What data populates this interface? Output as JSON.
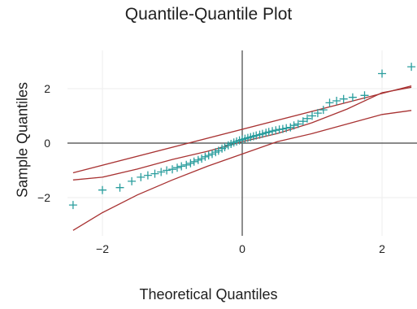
{
  "chart_data": {
    "type": "scatter",
    "title": "Quantile-Quantile Plot",
    "xlabel": "Theoretical Quantiles",
    "ylabel": "Sample Quantiles",
    "xlim": [
      -2.5,
      2.5
    ],
    "ylim": [
      -3.4,
      3.4
    ],
    "x_ticks": [
      -2,
      0,
      2
    ],
    "x_tick_labels": [
      "−2",
      "0",
      "2"
    ],
    "y_ticks": [
      -2,
      0,
      2
    ],
    "y_tick_labels": [
      "−2",
      "0",
      "2"
    ],
    "grid": true,
    "colors": {
      "points": "#2a9d9d",
      "bands": "#a83232",
      "axes": "#444444",
      "grid": "#eeeeee"
    },
    "series": [
      {
        "type": "scatter",
        "marker": "plus",
        "x": [
          -2.42,
          -2.0,
          -1.75,
          -1.58,
          -1.45,
          -1.35,
          -1.25,
          -1.16,
          -1.08,
          -1.0,
          -0.93,
          -0.87,
          -0.8,
          -0.74,
          -0.69,
          -0.63,
          -0.58,
          -0.53,
          -0.48,
          -0.43,
          -0.38,
          -0.34,
          -0.29,
          -0.25,
          -0.2,
          -0.16,
          -0.12,
          -0.08,
          -0.04,
          0.0,
          0.04,
          0.08,
          0.12,
          0.16,
          0.2,
          0.25,
          0.29,
          0.34,
          0.38,
          0.43,
          0.48,
          0.53,
          0.58,
          0.63,
          0.69,
          0.74,
          0.8,
          0.87,
          0.93,
          1.0,
          1.08,
          1.16,
          1.25,
          1.35,
          1.45,
          1.58,
          1.75,
          2.0,
          2.42
        ],
        "y": [
          -2.27,
          -1.72,
          -1.63,
          -1.4,
          -1.25,
          -1.18,
          -1.12,
          -1.06,
          -1.0,
          -0.96,
          -0.9,
          -0.85,
          -0.8,
          -0.74,
          -0.68,
          -0.62,
          -0.57,
          -0.5,
          -0.45,
          -0.4,
          -0.33,
          -0.28,
          -0.2,
          -0.15,
          -0.08,
          -0.03,
          0.02,
          0.06,
          0.1,
          0.13,
          0.16,
          0.19,
          0.22,
          0.25,
          0.28,
          0.31,
          0.34,
          0.38,
          0.41,
          0.44,
          0.47,
          0.5,
          0.52,
          0.55,
          0.58,
          0.65,
          0.7,
          0.8,
          0.9,
          1.0,
          1.1,
          1.22,
          1.48,
          1.55,
          1.62,
          1.68,
          1.75,
          2.55,
          2.8
        ]
      },
      {
        "type": "line",
        "x": [
          -2.42,
          -2.0,
          -1.5,
          -1.0,
          -0.5,
          0.0,
          0.5,
          1.0,
          1.5,
          2.0,
          2.42
        ],
        "y": [
          -1.35,
          -1.25,
          -0.95,
          -0.6,
          -0.3,
          0.05,
          0.35,
          0.75,
          1.25,
          1.85,
          2.05
        ]
      },
      {
        "type": "line",
        "x": [
          -2.42,
          -2.0,
          -1.5,
          -1.0,
          -0.5,
          0.0,
          0.5,
          1.0,
          1.5,
          2.0,
          2.42
        ],
        "y": [
          -3.2,
          -2.55,
          -1.9,
          -1.35,
          -0.85,
          -0.4,
          0.05,
          0.35,
          0.7,
          1.05,
          1.2
        ]
      },
      {
        "type": "line",
        "x": [
          -2.42,
          2.42
        ],
        "y": [
          -1.09,
          2.1
        ]
      }
    ]
  }
}
